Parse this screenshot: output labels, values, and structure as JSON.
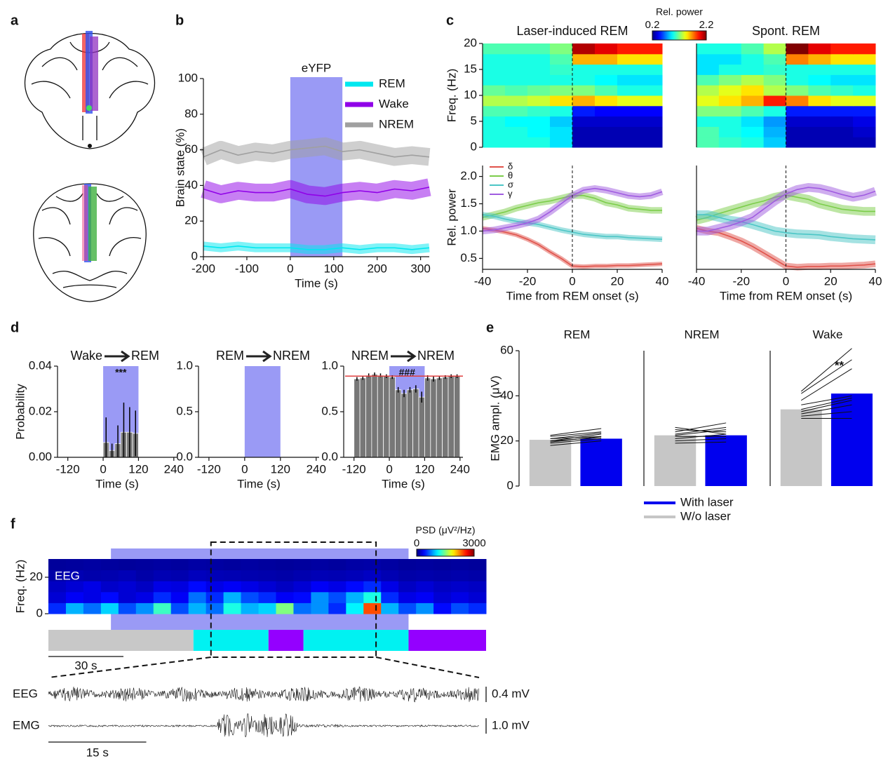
{
  "figure": {
    "panel_labels": [
      "a",
      "b",
      "c",
      "d",
      "e",
      "f"
    ]
  },
  "chart_data": [
    {
      "type": "line",
      "xlabel": "Time (s)",
      "ylabel": "Brain state (%)",
      "xlim": [
        -200,
        320
      ],
      "xticks": [
        -200,
        -100,
        0,
        100,
        200,
        300
      ],
      "ylim": [
        0,
        100
      ],
      "yticks": [
        0,
        20,
        40,
        60,
        80,
        100
      ],
      "legend": "upper right",
      "shade": {
        "label": "eYFP",
        "start": 0,
        "end": 120,
        "color": "#9a9af5"
      },
      "x": [
        -200,
        -160,
        -120,
        -80,
        -40,
        0,
        40,
        80,
        120,
        160,
        200,
        240,
        280,
        320
      ],
      "series": [
        {
          "name": "REM",
          "color": "#00e8f0",
          "spread": 2.5,
          "values": [
            6,
            5,
            6,
            5,
            5,
            5,
            4,
            4,
            5,
            4,
            5,
            5,
            4,
            5
          ]
        },
        {
          "name": "Wake",
          "color": "#9000e8",
          "spread": 5,
          "values": [
            38,
            35,
            37,
            36,
            36,
            38,
            35,
            34,
            36,
            37,
            36,
            38,
            37,
            39
          ]
        },
        {
          "name": "NREM",
          "color": "#a0a0a0",
          "spread": 5,
          "values": [
            56,
            60,
            57,
            59,
            58,
            60,
            61,
            62,
            59,
            60,
            58,
            56,
            57,
            56
          ]
        }
      ]
    },
    {
      "type": "heatmap",
      "title": "Laser-induced REM",
      "ylabel": "Freq. (Hz)",
      "xlim": [
        -40,
        40
      ],
      "ylim": [
        0,
        20
      ],
      "yticks": [
        0,
        5,
        10,
        15,
        20
      ],
      "vline": 0,
      "colorbar": {
        "label": "Rel. power",
        "lim": [
          0.2,
          2.2
        ],
        "ticks": [
          0.2,
          2.2
        ]
      },
      "z": [
        [
          1.0,
          1.0,
          1.0,
          0.9,
          0.3,
          0.3,
          0.3,
          0.3
        ],
        [
          1.0,
          1.0,
          0.95,
          0.9,
          0.3,
          0.3,
          0.3,
          0.3
        ],
        [
          1.0,
          0.95,
          0.95,
          0.85,
          0.35,
          0.35,
          0.35,
          0.35
        ],
        [
          1.1,
          1.1,
          1.05,
          1.0,
          0.5,
          0.45,
          0.45,
          0.45
        ],
        [
          1.3,
          1.3,
          1.35,
          1.5,
          1.6,
          1.5,
          1.4,
          1.4
        ],
        [
          1.15,
          1.1,
          1.15,
          1.2,
          1.2,
          1.1,
          1.0,
          1.0
        ],
        [
          1.0,
          1.0,
          1.0,
          1.0,
          1.0,
          0.95,
          0.9,
          0.9
        ],
        [
          1.0,
          1.0,
          1.0,
          1.05,
          1.0,
          1.0,
          1.0,
          1.0
        ],
        [
          1.0,
          1.0,
          1.0,
          1.1,
          1.6,
          1.6,
          1.5,
          1.5
        ],
        [
          1.1,
          1.1,
          1.1,
          1.2,
          2.1,
          2.0,
          1.9,
          1.9
        ]
      ]
    },
    {
      "type": "heatmap",
      "title": "Spont. REM",
      "xlim": [
        -40,
        40
      ],
      "ylim": [
        0,
        20
      ],
      "vline": 0,
      "z": [
        [
          1.1,
          1.05,
          1.0,
          0.85,
          0.3,
          0.3,
          0.3,
          0.3
        ],
        [
          1.1,
          1.0,
          0.95,
          0.8,
          0.3,
          0.3,
          0.3,
          0.35
        ],
        [
          1.0,
          1.0,
          0.9,
          0.75,
          0.35,
          0.35,
          0.35,
          0.4
        ],
        [
          1.2,
          1.2,
          1.1,
          1.0,
          0.5,
          0.5,
          0.5,
          0.5
        ],
        [
          1.4,
          1.5,
          1.6,
          1.9,
          1.7,
          1.5,
          1.4,
          1.4
        ],
        [
          1.3,
          1.4,
          1.5,
          1.3,
          1.2,
          1.1,
          1.05,
          1.0
        ],
        [
          1.1,
          1.2,
          1.3,
          1.2,
          1.0,
          0.95,
          0.9,
          0.9
        ],
        [
          0.9,
          1.0,
          1.0,
          1.05,
          1.0,
          1.0,
          1.0,
          1.0
        ],
        [
          0.9,
          0.9,
          1.0,
          1.1,
          1.7,
          1.6,
          1.5,
          1.5
        ],
        [
          1.0,
          1.0,
          1.1,
          1.3,
          2.2,
          2.0,
          1.9,
          1.9
        ]
      ]
    },
    {
      "type": "line",
      "xlabel": "Time from REM onset (s)",
      "ylabel": "Rel. power",
      "xlim": [
        -40,
        40
      ],
      "xticks": [
        -40,
        -20,
        0,
        20,
        40
      ],
      "ylim": [
        0.3,
        2.2
      ],
      "yticks": [
        0.5,
        {
          "value": 1,
          "label": "1.0"
        },
        1.5,
        {
          "value": 2,
          "label": "2.0"
        }
      ],
      "legend": "upper left",
      "vline": 0,
      "x": [
        -40,
        -35,
        -30,
        -25,
        -20,
        -15,
        -10,
        -5,
        0,
        5,
        10,
        15,
        20,
        25,
        30,
        35,
        40
      ],
      "series": [
        {
          "name": "δ",
          "color": "#e0524a",
          "spread": 0.04,
          "values": [
            1.05,
            1.02,
            0.98,
            0.93,
            0.85,
            0.75,
            0.62,
            0.5,
            0.36,
            0.35,
            0.36,
            0.36,
            0.37,
            0.37,
            0.38,
            0.39,
            0.4
          ]
        },
        {
          "name": "θ",
          "color": "#7ccd4a",
          "spread": 0.06,
          "values": [
            1.25,
            1.3,
            1.35,
            1.42,
            1.47,
            1.52,
            1.55,
            1.6,
            1.65,
            1.65,
            1.6,
            1.52,
            1.48,
            1.42,
            1.4,
            1.38,
            1.38
          ]
        },
        {
          "name": "σ",
          "color": "#4cc6c6",
          "spread": 0.05,
          "values": [
            1.3,
            1.27,
            1.22,
            1.18,
            1.15,
            1.12,
            1.07,
            1.02,
            0.98,
            0.94,
            0.92,
            0.9,
            0.9,
            0.88,
            0.87,
            0.86,
            0.85
          ]
        },
        {
          "name": "γ",
          "color": "#a05ce0",
          "spread": 0.06,
          "values": [
            1.0,
            1.02,
            1.06,
            1.1,
            1.15,
            1.22,
            1.35,
            1.5,
            1.65,
            1.75,
            1.78,
            1.75,
            1.7,
            1.65,
            1.63,
            1.65,
            1.72
          ]
        }
      ]
    },
    {
      "type": "line",
      "xlabel": "Time from REM onset (s)",
      "xlim": [
        -40,
        40
      ],
      "xticks": [
        -40,
        -20,
        0,
        20,
        40
      ],
      "ylim": [
        0.3,
        2.2
      ],
      "vline": 0,
      "x": [
        -40,
        -35,
        -30,
        -25,
        -20,
        -15,
        -10,
        -5,
        0,
        5,
        10,
        15,
        20,
        25,
        30,
        35,
        40
      ],
      "series": [
        {
          "color": "#e0524a",
          "spread": 0.06,
          "values": [
            1.05,
            1.0,
            0.97,
            0.9,
            0.82,
            0.72,
            0.6,
            0.48,
            0.36,
            0.34,
            0.35,
            0.35,
            0.36,
            0.36,
            0.37,
            0.38,
            0.4
          ]
        },
        {
          "color": "#7ccd4a",
          "spread": 0.08,
          "values": [
            1.2,
            1.25,
            1.32,
            1.38,
            1.44,
            1.5,
            1.55,
            1.62,
            1.66,
            1.62,
            1.58,
            1.5,
            1.45,
            1.4,
            1.38,
            1.36,
            1.36
          ]
        },
        {
          "color": "#4cc6c6",
          "spread": 0.08,
          "values": [
            1.3,
            1.3,
            1.25,
            1.2,
            1.17,
            1.12,
            1.06,
            1.0,
            0.97,
            0.95,
            0.94,
            0.93,
            0.9,
            0.88,
            0.86,
            0.85,
            0.84
          ]
        },
        {
          "color": "#a05ce0",
          "spread": 0.08,
          "values": [
            1.0,
            1.0,
            1.05,
            1.1,
            1.17,
            1.25,
            1.4,
            1.55,
            1.68,
            1.76,
            1.8,
            1.78,
            1.73,
            1.67,
            1.62,
            1.66,
            1.73
          ]
        }
      ]
    },
    {
      "type": "histogram",
      "transition": {
        "from": "Wake",
        "to": "REM"
      },
      "ylabel": "Probability",
      "xlabel": "Time (s)",
      "xlim": [
        -155,
        250
      ],
      "xticks": [
        -120,
        0,
        120,
        240
      ],
      "ylim": [
        0,
        0.04
      ],
      "yticks": [
        {
          "value": 0,
          "label": "0.00"
        },
        0.02,
        0.04
      ],
      "shade": {
        "start": 0,
        "end": 120,
        "color": "#9a9af5"
      },
      "annotation": "***",
      "bins": [
        0,
        20,
        40,
        60,
        80,
        100,
        120
      ],
      "values": [
        0.0065,
        0.003,
        0.006,
        0.011,
        0.011,
        0.0105
      ],
      "errors": [
        0.011,
        0.003,
        0.008,
        0.013,
        0.011,
        0.01
      ]
    },
    {
      "type": "histogram",
      "transition": {
        "from": "REM",
        "to": "NREM"
      },
      "xlabel": "Time (s)",
      "xlim": [
        -155,
        250
      ],
      "xticks": [
        -120,
        0,
        120,
        240
      ],
      "ylim": [
        0,
        1
      ],
      "yticks": [
        {
          "value": 0,
          "label": "0.0"
        },
        0.5,
        {
          "value": 1,
          "label": "1.0"
        }
      ],
      "shade": {
        "start": 0,
        "end": 120,
        "color": "#9a9af5"
      }
    },
    {
      "type": "histogram",
      "transition": {
        "from": "NREM",
        "to": "NREM"
      },
      "xlabel": "Time (s)",
      "xlim": [
        -155,
        250
      ],
      "xticks": [
        -120,
        0,
        120,
        240
      ],
      "ylim": [
        0,
        1
      ],
      "yticks": [
        {
          "value": 0,
          "label": "0.0"
        },
        0.5,
        {
          "value": 1,
          "label": "1.0"
        }
      ],
      "shade": {
        "start": 0,
        "end": 120,
        "color": "#9a9af5"
      },
      "annotation": "###",
      "reference": 0.89,
      "bins": [
        -120,
        -100,
        -80,
        -60,
        -40,
        -20,
        0,
        20,
        40,
        60,
        80,
        100,
        120,
        140,
        160,
        180,
        200,
        220,
        240
      ],
      "values": [
        0.86,
        0.87,
        0.9,
        0.91,
        0.9,
        0.89,
        0.88,
        0.74,
        0.7,
        0.74,
        0.75,
        0.66,
        0.87,
        0.86,
        0.87,
        0.88,
        0.89,
        0.89
      ],
      "errors": [
        0.02,
        0.02,
        0.02,
        0.02,
        0.02,
        0.02,
        0.02,
        0.03,
        0.04,
        0.03,
        0.04,
        0.06,
        0.03,
        0.03,
        0.02,
        0.02,
        0.02,
        0.02
      ]
    },
    {
      "type": "bar",
      "title": "REM",
      "ylabel": "EMG ampl. (μV)",
      "ylim": [
        0,
        60
      ],
      "yticks": [
        0,
        20,
        40,
        60
      ],
      "legend": "below",
      "series": [
        {
          "name": "W/o laser",
          "color": "#c6c6c6",
          "values": [
            20.5
          ]
        },
        {
          "name": "With laser",
          "color": "#0000ee",
          "values": [
            21
          ]
        }
      ],
      "pairs": [
        [
          18,
          20
        ],
        [
          19,
          21
        ],
        [
          19.5,
          22
        ],
        [
          20,
          23
        ],
        [
          21,
          23.5
        ],
        [
          22,
          24
        ],
        [
          22.5,
          25.5
        ],
        [
          20,
          21.5
        ],
        [
          21,
          22
        ]
      ]
    },
    {
      "type": "bar",
      "title": "NREM",
      "ylim": [
        0,
        60
      ],
      "series": [
        {
          "color": "#c6c6c6",
          "values": [
            22.5
          ]
        },
        {
          "color": "#0000ee",
          "values": [
            22.5
          ]
        }
      ],
      "pairs": [
        [
          19,
          19.5
        ],
        [
          20,
          21
        ],
        [
          21,
          23
        ],
        [
          22,
          22
        ],
        [
          22.5,
          25
        ],
        [
          23,
          26
        ],
        [
          24,
          28
        ],
        [
          25,
          24
        ],
        [
          26,
          23
        ]
      ]
    },
    {
      "type": "bar",
      "title": "Wake",
      "ylim": [
        0,
        60
      ],
      "annotation": "**",
      "series": [
        {
          "color": "#c6c6c6",
          "values": [
            34
          ]
        },
        {
          "color": "#0000ee",
          "values": [
            41
          ]
        }
      ],
      "pairs": [
        [
          30,
          30
        ],
        [
          31,
          33
        ],
        [
          32,
          36
        ],
        [
          33,
          38
        ],
        [
          34,
          39
        ],
        [
          36,
          40
        ],
        [
          38,
          52
        ],
        [
          41,
          56
        ],
        [
          42,
          61
        ]
      ]
    },
    {
      "type": "spectrogram",
      "label": "EEG",
      "ylabel": "Freq. (Hz)",
      "xlim": [
        0,
        175
      ],
      "ylim": [
        0,
        30
      ],
      "yticks": [
        0,
        20
      ],
      "colorbar": {
        "label": "PSD (μV²/Hz)",
        "lim": [
          0,
          3000
        ],
        "ticks": [
          0,
          3000
        ]
      },
      "shade": {
        "start": 25,
        "end": 144,
        "color": "#9a9af5"
      },
      "hypnogram": {
        "bounds": [
          0,
          58,
          88,
          102,
          144,
          175
        ],
        "colors": [
          "#c8c8c8",
          "#00f2f2",
          "#9400ff",
          "#00f2f2",
          "#9400ff"
        ]
      },
      "scalebar": {
        "value": 30,
        "label": "30 s"
      },
      "zoom": [
        65,
        131
      ],
      "traces": {
        "labels": [
          "EEG",
          "EMG"
        ],
        "scales": [
          "0.4 mV",
          "1.0 mV"
        ],
        "scalebar": {
          "value": 15,
          "label": "15 s"
        }
      },
      "z": [
        [
          500,
          900,
          700,
          1000,
          600,
          800,
          1300,
          600,
          900,
          700,
          1200,
          900,
          1000,
          1500,
          700,
          800,
          500,
          1100,
          2400,
          900,
          600,
          800,
          400,
          600,
          500
        ],
        [
          250,
          350,
          300,
          400,
          250,
          300,
          500,
          350,
          700,
          500,
          900,
          600,
          500,
          350,
          400,
          800,
          600,
          900,
          1200,
          500,
          300,
          350,
          250,
          300,
          250
        ],
        [
          200,
          250,
          300,
          220,
          250,
          200,
          300,
          280,
          400,
          300,
          350,
          300,
          250,
          200,
          250,
          350,
          300,
          400,
          500,
          300,
          200,
          250,
          200,
          220,
          200
        ],
        [
          120,
          150,
          130,
          140,
          160,
          120,
          150,
          140,
          180,
          160,
          150,
          140,
          130,
          120,
          140,
          160,
          150,
          170,
          200,
          150,
          120,
          130,
          120,
          130,
          120
        ],
        [
          80,
          90,
          100,
          90,
          80,
          90,
          100,
          90,
          110,
          100,
          90,
          100,
          90,
          80,
          90,
          100,
          90,
          110,
          120,
          100,
          80,
          90,
          80,
          90,
          80
        ]
      ]
    }
  ]
}
